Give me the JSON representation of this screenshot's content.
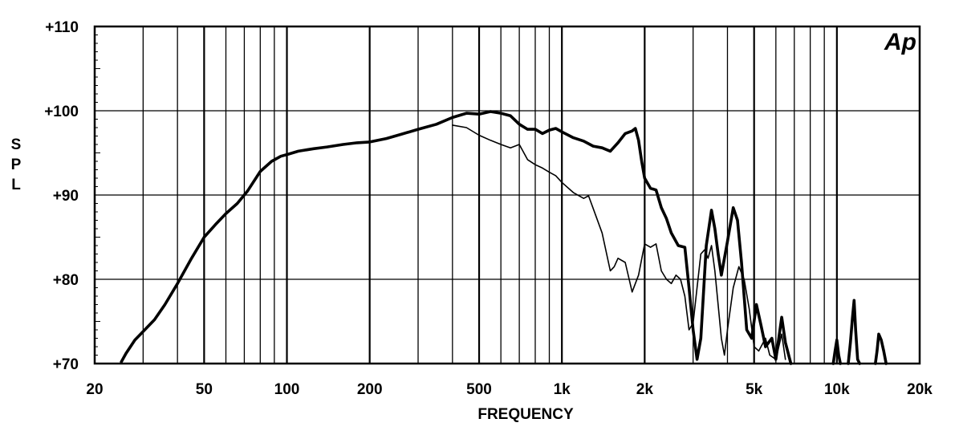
{
  "chart_data": {
    "type": "line",
    "title": "",
    "xlabel": "FREQUENCY",
    "ylabel": "S P L",
    "x_scale": "log",
    "xlim": [
      20,
      20000
    ],
    "ylim": [
      70,
      110
    ],
    "grid": true,
    "logo": "Ap",
    "x_ticks": [
      {
        "value": 20,
        "label": "20"
      },
      {
        "value": 50,
        "label": "50"
      },
      {
        "value": 100,
        "label": "100"
      },
      {
        "value": 200,
        "label": "200"
      },
      {
        "value": 500,
        "label": "500"
      },
      {
        "value": 1000,
        "label": "1k"
      },
      {
        "value": 2000,
        "label": "2k"
      },
      {
        "value": 5000,
        "label": "5k"
      },
      {
        "value": 10000,
        "label": "10k"
      },
      {
        "value": 20000,
        "label": "20k"
      }
    ],
    "y_ticks": [
      {
        "value": 70,
        "label": "+70"
      },
      {
        "value": 80,
        "label": "+80"
      },
      {
        "value": 90,
        "label": "+90"
      },
      {
        "value": 100,
        "label": "+100"
      },
      {
        "value": 110,
        "label": "+110"
      }
    ],
    "series": [
      {
        "style": "thick",
        "points": [
          [
            25,
            70.2
          ],
          [
            26,
            71.2
          ],
          [
            28,
            72.8
          ],
          [
            30,
            73.8
          ],
          [
            33,
            75.2
          ],
          [
            36,
            77.0
          ],
          [
            40,
            79.5
          ],
          [
            45,
            82.5
          ],
          [
            50,
            85.0
          ],
          [
            55,
            86.5
          ],
          [
            60,
            87.8
          ],
          [
            66,
            89.0
          ],
          [
            72,
            90.5
          ],
          [
            80,
            92.8
          ],
          [
            88,
            94.0
          ],
          [
            95,
            94.6
          ],
          [
            100,
            94.8
          ],
          [
            110,
            95.2
          ],
          [
            125,
            95.5
          ],
          [
            140,
            95.7
          ],
          [
            160,
            96.0
          ],
          [
            180,
            96.2
          ],
          [
            200,
            96.3
          ],
          [
            230,
            96.7
          ],
          [
            260,
            97.2
          ],
          [
            300,
            97.8
          ],
          [
            350,
            98.4
          ],
          [
            400,
            99.2
          ],
          [
            450,
            99.7
          ],
          [
            500,
            99.6
          ],
          [
            550,
            99.9
          ],
          [
            600,
            99.7
          ],
          [
            650,
            99.4
          ],
          [
            700,
            98.4
          ],
          [
            750,
            97.8
          ],
          [
            800,
            97.8
          ],
          [
            850,
            97.3
          ],
          [
            900,
            97.7
          ],
          [
            950,
            97.9
          ],
          [
            1000,
            97.5
          ],
          [
            1100,
            96.8
          ],
          [
            1200,
            96.4
          ],
          [
            1300,
            95.8
          ],
          [
            1400,
            95.6
          ],
          [
            1500,
            95.2
          ],
          [
            1600,
            96.2
          ],
          [
            1700,
            97.3
          ],
          [
            1800,
            97.6
          ],
          [
            1850,
            97.9
          ],
          [
            1900,
            96.5
          ],
          [
            1950,
            94.0
          ],
          [
            2000,
            92.0
          ],
          [
            2100,
            90.8
          ],
          [
            2200,
            90.6
          ],
          [
            2300,
            88.5
          ],
          [
            2400,
            87.2
          ],
          [
            2500,
            85.5
          ],
          [
            2650,
            84.0
          ],
          [
            2800,
            83.8
          ],
          [
            2900,
            79.0
          ],
          [
            3000,
            74.0
          ],
          [
            3100,
            70.5
          ],
          [
            3200,
            73.0
          ],
          [
            3350,
            84.0
          ],
          [
            3500,
            88.2
          ],
          [
            3600,
            86.0
          ],
          [
            3700,
            83.0
          ],
          [
            3800,
            80.5
          ],
          [
            4000,
            84.5
          ],
          [
            4200,
            88.5
          ],
          [
            4350,
            87.0
          ],
          [
            4500,
            82.0
          ],
          [
            4700,
            74.0
          ],
          [
            4900,
            73.0
          ],
          [
            5100,
            77.0
          ],
          [
            5300,
            74.5
          ],
          [
            5500,
            72.0
          ],
          [
            5800,
            73.0
          ],
          [
            6000,
            70.5
          ],
          [
            6300,
            75.5
          ],
          [
            6500,
            72.5
          ],
          [
            6800,
            70.0
          ]
        ]
      },
      {
        "style": "thin",
        "points": [
          [
            400,
            98.3
          ],
          [
            450,
            98.0
          ],
          [
            500,
            97.1
          ],
          [
            550,
            96.5
          ],
          [
            600,
            96.0
          ],
          [
            650,
            95.6
          ],
          [
            700,
            96.0
          ],
          [
            750,
            94.2
          ],
          [
            800,
            93.6
          ],
          [
            850,
            93.2
          ],
          [
            900,
            92.7
          ],
          [
            950,
            92.3
          ],
          [
            1000,
            91.5
          ],
          [
            1100,
            90.3
          ],
          [
            1200,
            89.6
          ],
          [
            1250,
            89.9
          ],
          [
            1300,
            88.4
          ],
          [
            1400,
            85.5
          ],
          [
            1500,
            81.0
          ],
          [
            1550,
            81.5
          ],
          [
            1600,
            82.5
          ],
          [
            1700,
            82.0
          ],
          [
            1800,
            78.5
          ],
          [
            1900,
            80.5
          ],
          [
            2000,
            84.2
          ],
          [
            2100,
            83.8
          ],
          [
            2200,
            84.2
          ],
          [
            2300,
            81.0
          ],
          [
            2400,
            80.0
          ],
          [
            2500,
            79.5
          ],
          [
            2600,
            80.5
          ],
          [
            2700,
            80.0
          ],
          [
            2800,
            78.0
          ],
          [
            2900,
            74.0
          ],
          [
            3000,
            74.8
          ],
          [
            3100,
            79.0
          ],
          [
            3200,
            83.0
          ],
          [
            3300,
            83.5
          ],
          [
            3400,
            82.5
          ],
          [
            3500,
            84.0
          ],
          [
            3600,
            81.0
          ],
          [
            3800,
            73.0
          ],
          [
            3900,
            71.0
          ],
          [
            4000,
            74.0
          ],
          [
            4200,
            79.0
          ],
          [
            4400,
            81.5
          ],
          [
            4600,
            80.0
          ],
          [
            4800,
            76.5
          ],
          [
            5000,
            72.0
          ],
          [
            5200,
            71.5
          ],
          [
            5500,
            73.0
          ],
          [
            5700,
            71.0
          ],
          [
            6000,
            70.5
          ],
          [
            6300,
            73.5
          ],
          [
            6500,
            70.5
          ]
        ]
      },
      {
        "style": "thick",
        "points": [
          [
            9700,
            70.0
          ],
          [
            9850,
            71.5
          ],
          [
            10000,
            72.8
          ],
          [
            10150,
            71.0
          ],
          [
            10300,
            70.0
          ]
        ]
      },
      {
        "style": "thick",
        "points": [
          [
            11000,
            70.0
          ],
          [
            11200,
            72.5
          ],
          [
            11400,
            75.5
          ],
          [
            11550,
            77.5
          ],
          [
            11700,
            74.0
          ],
          [
            11900,
            70.5
          ],
          [
            12100,
            70.0
          ]
        ]
      },
      {
        "style": "thick",
        "points": [
          [
            13800,
            70.0
          ],
          [
            14000,
            71.5
          ],
          [
            14200,
            73.5
          ],
          [
            14500,
            72.8
          ],
          [
            14800,
            71.5
          ],
          [
            15100,
            70.0
          ]
        ]
      }
    ]
  }
}
